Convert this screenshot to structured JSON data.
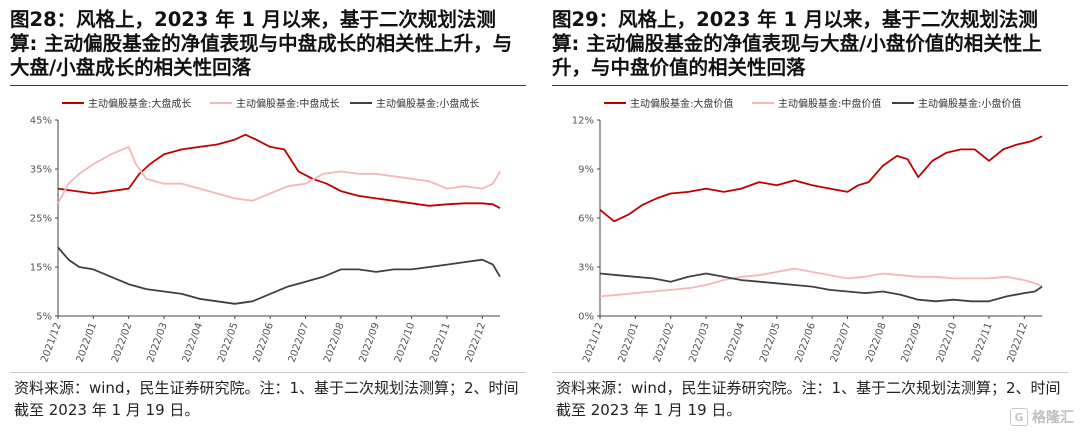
{
  "charts": [
    {
      "title": "图28：风格上，2023 年 1 月以来，基于二次规划法测算: 主动偏股基金的净值表现与中盘成长的相关性上升，与大盘/小盘成长的相关性回落",
      "source": "资料来源：wind，民生证券研究院。注：1、基于二次规划法测算；2、时间截至 2023 年 1 月 19 日。"
    },
    {
      "title": "图29：风格上，2023 年 1 月以来，基于二次规划法测算: 主动偏股基金的净值表现与大盘/小盘价值的相关性上升，与中盘价值的相关性回落",
      "source": "资料来源：wind，民生证券研究院。注：1、基于二次规划法测算；2、时间截至 2023 年 1 月 19 日。"
    }
  ],
  "chart_data": [
    {
      "type": "line",
      "x_ticks": [
        "2021/12",
        "2022/01",
        "2022/02",
        "2022/03",
        "2022/04",
        "2022/05",
        "2022/06",
        "2022/07",
        "2022/08",
        "2022/09",
        "2022/10",
        "2022/11",
        "2022/12"
      ],
      "ylim": [
        5,
        45
      ],
      "y_ticks": [
        "5%",
        "15%",
        "25%",
        "35%",
        "45%"
      ],
      "y_tick_values": [
        5,
        15,
        25,
        35,
        45
      ],
      "grid": false,
      "legend_position": "top",
      "series": [
        {
          "name": "主动偏股基金:大盘成长",
          "color": "#c00000",
          "x": [
            0,
            0.5,
            1,
            1.5,
            2,
            2.3,
            2.6,
            3,
            3.5,
            4,
            4.5,
            5,
            5.3,
            5.6,
            6,
            6.4,
            6.8,
            7.2,
            7.6,
            8,
            8.5,
            9,
            9.5,
            10,
            10.5,
            11,
            11.5,
            12,
            12.3,
            12.5
          ],
          "values": [
            31,
            30.5,
            30,
            30.5,
            31,
            34,
            36,
            38,
            39,
            39.5,
            40,
            41,
            42,
            41,
            39.5,
            39,
            34.5,
            33,
            32,
            30.5,
            29.5,
            29,
            28.5,
            28,
            27.5,
            27.8,
            28,
            28,
            27.8,
            27
          ]
        },
        {
          "name": "主动偏股基金:中盘成长",
          "color": "#f0b8b8",
          "x": [
            0,
            0.3,
            0.6,
            1,
            1.5,
            2,
            2.2,
            2.5,
            3,
            3.5,
            4,
            4.5,
            5,
            5.5,
            6,
            6.5,
            7,
            7.5,
            8,
            8.5,
            9,
            9.5,
            10,
            10.5,
            11,
            11.5,
            12,
            12.3,
            12.5
          ],
          "values": [
            28,
            32,
            34,
            36,
            38,
            39.5,
            36,
            33,
            32,
            32,
            31,
            30,
            29,
            28.5,
            30,
            31.5,
            32,
            34,
            34.5,
            34,
            34,
            33.5,
            33,
            32.5,
            31,
            31.5,
            31,
            32,
            34.5
          ]
        },
        {
          "name": "主动偏股基金:小盘成长",
          "color": "#404040",
          "x": [
            0,
            0.3,
            0.6,
            1,
            1.5,
            2,
            2.5,
            3,
            3.5,
            4,
            4.5,
            5,
            5.5,
            6,
            6.5,
            7,
            7.5,
            8,
            8.5,
            9,
            9.5,
            10,
            10.5,
            11,
            11.5,
            12,
            12.3,
            12.5
          ],
          "values": [
            19,
            16.5,
            15,
            14.5,
            13,
            11.5,
            10.5,
            10,
            9.5,
            8.5,
            8,
            7.5,
            8,
            9.5,
            11,
            12,
            13,
            14.5,
            14.5,
            14,
            14.5,
            14.5,
            15,
            15.5,
            16,
            16.5,
            15.5,
            13
          ]
        }
      ]
    },
    {
      "type": "line",
      "x_ticks": [
        "2021/12",
        "2022/01",
        "2022/02",
        "2022/03",
        "2022/04",
        "2022/05",
        "2022/06",
        "2022/07",
        "2022/08",
        "2022/09",
        "2022/10",
        "2022/11",
        "2022/12"
      ],
      "ylim": [
        0,
        12
      ],
      "y_ticks": [
        "0%",
        "3%",
        "6%",
        "9%",
        "12%"
      ],
      "y_tick_values": [
        0,
        3,
        6,
        9,
        12
      ],
      "grid": false,
      "legend_position": "top",
      "series": [
        {
          "name": "主动偏股基金:大盘价值",
          "color": "#c00000",
          "x": [
            0,
            0.4,
            0.8,
            1.2,
            1.6,
            2,
            2.5,
            3,
            3.5,
            4,
            4.5,
            5,
            5.5,
            6,
            6.5,
            7,
            7.3,
            7.6,
            8,
            8.4,
            8.7,
            9,
            9.4,
            9.8,
            10.2,
            10.6,
            11,
            11.4,
            11.8,
            12.2,
            12.5
          ],
          "values": [
            6.5,
            5.8,
            6.2,
            6.8,
            7.2,
            7.5,
            7.6,
            7.8,
            7.6,
            7.8,
            8.2,
            8,
            8.3,
            8,
            7.8,
            7.6,
            8,
            8.2,
            9.2,
            9.8,
            9.6,
            8.5,
            9.5,
            10,
            10.2,
            10.2,
            9.5,
            10.2,
            10.5,
            10.7,
            11
          ]
        },
        {
          "name": "主动偏股基金:中盘价值",
          "color": "#f0b8b8",
          "x": [
            0,
            0.5,
            1,
            1.5,
            2,
            2.5,
            3,
            3.5,
            4,
            4.5,
            5,
            5.5,
            6,
            6.5,
            7,
            7.5,
            8,
            8.5,
            9,
            9.5,
            10,
            10.5,
            11,
            11.5,
            12,
            12.3,
            12.5
          ],
          "values": [
            1.2,
            1.3,
            1.4,
            1.5,
            1.6,
            1.7,
            1.9,
            2.2,
            2.4,
            2.5,
            2.7,
            2.9,
            2.7,
            2.5,
            2.3,
            2.4,
            2.6,
            2.5,
            2.4,
            2.4,
            2.3,
            2.3,
            2.3,
            2.4,
            2.2,
            2,
            1.8
          ]
        },
        {
          "name": "主动偏股基金:小盘价值",
          "color": "#404040",
          "x": [
            0,
            0.5,
            1,
            1.5,
            2,
            2.5,
            3,
            3.5,
            4,
            4.5,
            5,
            5.5,
            6,
            6.5,
            7,
            7.5,
            8,
            8.5,
            9,
            9.5,
            10,
            10.5,
            11,
            11.5,
            12,
            12.3,
            12.5
          ],
          "values": [
            2.6,
            2.5,
            2.4,
            2.3,
            2.1,
            2.4,
            2.6,
            2.4,
            2.2,
            2.1,
            2,
            1.9,
            1.8,
            1.6,
            1.5,
            1.4,
            1.5,
            1.3,
            1,
            0.9,
            1,
            0.9,
            0.9,
            1.2,
            1.4,
            1.5,
            1.8
          ]
        }
      ]
    }
  ],
  "watermark": {
    "icon": "gelonghui-logo",
    "text": "格隆汇"
  }
}
